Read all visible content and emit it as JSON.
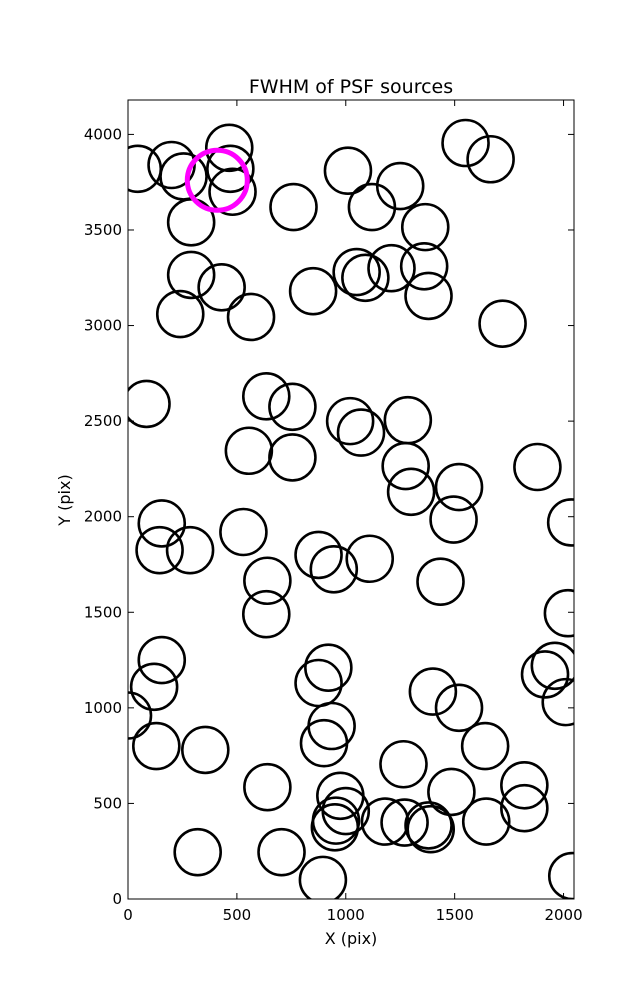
{
  "chart_data": {
    "type": "scatter",
    "title": "FWHM of PSF sources",
    "xlabel": "X (pix)",
    "ylabel": "Y (pix)",
    "xlim": [
      0,
      2048
    ],
    "ylim": [
      0,
      4180
    ],
    "x_ticks": [
      0,
      500,
      1000,
      1500,
      2000
    ],
    "y_ticks": [
      0,
      500,
      1000,
      1500,
      2000,
      2500,
      3000,
      3500,
      4000
    ],
    "grid": false,
    "marker": "open circle",
    "default_color": "#000000",
    "highlight_color": "#ff00ff",
    "series": [
      {
        "color": "#000000",
        "points": [
          {
            "x": 45,
            "y": 3820
          },
          {
            "x": 200,
            "y": 3840
          },
          {
            "x": 255,
            "y": 3780
          },
          {
            "x": 465,
            "y": 3930
          },
          {
            "x": 470,
            "y": 3820
          },
          {
            "x": 480,
            "y": 3700
          },
          {
            "x": 290,
            "y": 3540
          },
          {
            "x": 290,
            "y": 3265
          },
          {
            "x": 430,
            "y": 3200
          },
          {
            "x": 240,
            "y": 3060
          },
          {
            "x": 565,
            "y": 3045
          },
          {
            "x": 760,
            "y": 3620
          },
          {
            "x": 850,
            "y": 3180
          },
          {
            "x": 1010,
            "y": 3810
          },
          {
            "x": 1120,
            "y": 3620
          },
          {
            "x": 1250,
            "y": 3730
          },
          {
            "x": 1365,
            "y": 3515
          },
          {
            "x": 1050,
            "y": 3280
          },
          {
            "x": 1090,
            "y": 3250
          },
          {
            "x": 1210,
            "y": 3300
          },
          {
            "x": 1360,
            "y": 3310
          },
          {
            "x": 1380,
            "y": 3155
          },
          {
            "x": 1550,
            "y": 3955
          },
          {
            "x": 1665,
            "y": 3870
          },
          {
            "x": 1720,
            "y": 3010
          },
          {
            "x": 85,
            "y": 2590
          },
          {
            "x": 635,
            "y": 2630
          },
          {
            "x": 755,
            "y": 2575
          },
          {
            "x": 555,
            "y": 2345
          },
          {
            "x": 755,
            "y": 2310
          },
          {
            "x": 1020,
            "y": 2500
          },
          {
            "x": 1070,
            "y": 2440
          },
          {
            "x": 1285,
            "y": 2505
          },
          {
            "x": 1275,
            "y": 2265
          },
          {
            "x": 1300,
            "y": 2130
          },
          {
            "x": 1520,
            "y": 2155
          },
          {
            "x": 1495,
            "y": 1985
          },
          {
            "x": 1880,
            "y": 2260
          },
          {
            "x": 2035,
            "y": 1970
          },
          {
            "x": 155,
            "y": 1965
          },
          {
            "x": 145,
            "y": 1825
          },
          {
            "x": 285,
            "y": 1825
          },
          {
            "x": 530,
            "y": 1920
          },
          {
            "x": 875,
            "y": 1800
          },
          {
            "x": 945,
            "y": 1725
          },
          {
            "x": 1110,
            "y": 1780
          },
          {
            "x": 640,
            "y": 1665
          },
          {
            "x": 635,
            "y": 1490
          },
          {
            "x": 1435,
            "y": 1660
          },
          {
            "x": 2020,
            "y": 1495
          },
          {
            "x": 155,
            "y": 1250
          },
          {
            "x": 120,
            "y": 1110
          },
          {
            "x": 0,
            "y": 960
          },
          {
            "x": 130,
            "y": 800
          },
          {
            "x": 355,
            "y": 780
          },
          {
            "x": 920,
            "y": 1210
          },
          {
            "x": 875,
            "y": 1130
          },
          {
            "x": 935,
            "y": 905
          },
          {
            "x": 900,
            "y": 815
          },
          {
            "x": 1400,
            "y": 1085
          },
          {
            "x": 1520,
            "y": 1000
          },
          {
            "x": 1640,
            "y": 800
          },
          {
            "x": 1960,
            "y": 1220
          },
          {
            "x": 1915,
            "y": 1175
          },
          {
            "x": 2010,
            "y": 1030
          },
          {
            "x": 640,
            "y": 585
          },
          {
            "x": 320,
            "y": 245
          },
          {
            "x": 705,
            "y": 245
          },
          {
            "x": 895,
            "y": 100
          },
          {
            "x": 975,
            "y": 540
          },
          {
            "x": 1000,
            "y": 460
          },
          {
            "x": 955,
            "y": 410
          },
          {
            "x": 950,
            "y": 375
          },
          {
            "x": 1180,
            "y": 405
          },
          {
            "x": 1270,
            "y": 400
          },
          {
            "x": 1265,
            "y": 705
          },
          {
            "x": 1485,
            "y": 560
          },
          {
            "x": 1380,
            "y": 385
          },
          {
            "x": 1390,
            "y": 365
          },
          {
            "x": 1645,
            "y": 405
          },
          {
            "x": 1820,
            "y": 595
          },
          {
            "x": 1820,
            "y": 475
          },
          {
            "x": 2040,
            "y": 120
          }
        ]
      },
      {
        "color": "#ff00ff",
        "points": [
          {
            "x": 410,
            "y": 3760
          }
        ]
      }
    ]
  }
}
